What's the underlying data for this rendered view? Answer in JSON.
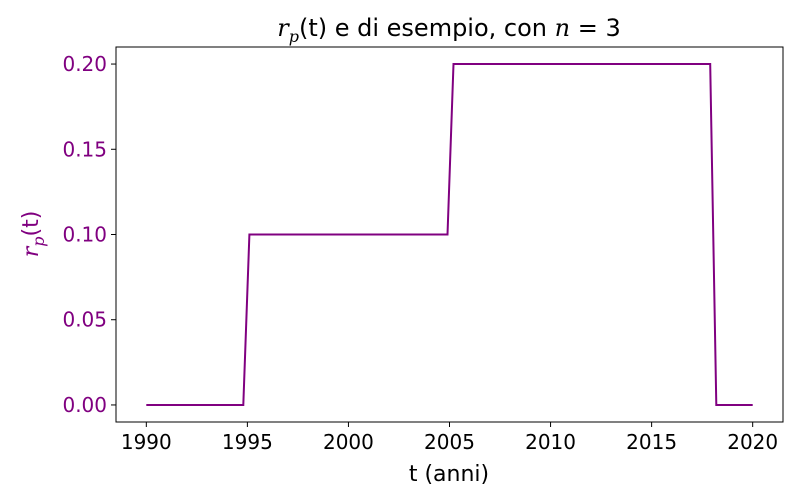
{
  "chart_data": {
    "type": "line",
    "title": {
      "prefix": "r",
      "subscript": "p",
      "middle": "(t) e di esempio, con ",
      "var": "n",
      "equals": " = 3"
    },
    "xlabel": "t (anni)",
    "ylabel": {
      "prefix": "r",
      "subscript": "p",
      "suffix": "(t)"
    },
    "xlim": [
      1988.5,
      2021.5
    ],
    "ylim": [
      -0.01,
      0.21
    ],
    "xticks": [
      1990,
      1995,
      2000,
      2005,
      2010,
      2015,
      2020
    ],
    "yticks": [
      0.0,
      0.05,
      0.1,
      0.15,
      0.2
    ],
    "ytick_labels": [
      "0.00",
      "0.05",
      "0.10",
      "0.15",
      "0.20"
    ],
    "xtick_labels": [
      "1990",
      "1995",
      "2000",
      "2005",
      "2010",
      "2015",
      "2020"
    ],
    "series": [
      {
        "x": [
          1990,
          1994.8,
          1995.1,
          2004.9,
          2005.2,
          2017.9,
          2018.2,
          2020
        ],
        "y": [
          0.0,
          0.0,
          0.1,
          0.1,
          0.2,
          0.2,
          0.0,
          0.0
        ]
      }
    ],
    "colors": {
      "line": "#800080",
      "ytick": "#800080",
      "ylabel": "#800080",
      "axis": "#000000"
    },
    "grid": false
  }
}
